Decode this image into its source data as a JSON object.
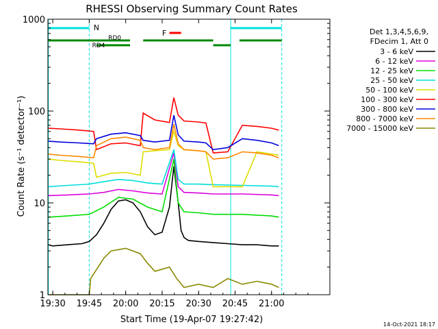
{
  "chart_data": {
    "type": "line",
    "title": "RHESSI Observing Summary Count Rates",
    "xlabel": "Start Time (19-Apr-07 19:27:42)",
    "ylabel": "Count Rate (s⁻¹ detector⁻¹)",
    "yscale": "log",
    "ylim": [
      1,
      1000
    ],
    "xlim_minutes": [
      19.4667,
      21.4
    ],
    "x_tick_labels": [
      "19:30",
      "19:45",
      "20:00",
      "20:15",
      "20:30",
      "20:45",
      "21:00"
    ],
    "x_tick_hours": [
      19.5,
      19.75,
      20.0,
      20.25,
      20.5,
      20.75,
      21.0
    ],
    "y_tick_labels": [
      "1",
      "10",
      "100",
      "1000"
    ],
    "y_tick_values": [
      1,
      10,
      100,
      1000
    ],
    "legend_header": [
      "Det 1,3,4,5,6,9,",
      "FDecim 1, Att 0"
    ],
    "legend_placement": "right",
    "footer_date": "14-Oct-2021 18:17",
    "annotations": {
      "night": "N",
      "flare": "F",
      "rd0": "RD0",
      "rd4": "RD4"
    },
    "series": [
      {
        "name": "3 - 6 keV",
        "color": "#000000",
        "x": [
          19.47,
          19.5,
          19.6,
          19.7,
          19.75,
          19.8,
          19.85,
          19.9,
          19.95,
          20.0,
          20.05,
          20.1,
          20.15,
          20.2,
          20.25,
          20.3,
          20.33,
          20.36,
          20.38,
          20.4,
          20.43,
          20.5,
          20.6,
          20.7,
          20.8,
          20.9,
          21.0,
          21.05
        ],
        "y": [
          3.5,
          3.4,
          3.5,
          3.6,
          3.8,
          4.5,
          6.0,
          8.5,
          10.5,
          10.8,
          10.0,
          8.0,
          5.5,
          4.5,
          4.8,
          9.0,
          25.0,
          10.0,
          5.0,
          4.2,
          3.9,
          3.8,
          3.7,
          3.6,
          3.5,
          3.5,
          3.4,
          3.4
        ]
      },
      {
        "name": "6 - 12 keV",
        "color": "#dd00dd",
        "x": [
          19.47,
          19.6,
          19.75,
          19.85,
          19.95,
          20.05,
          20.15,
          20.25,
          20.33,
          20.36,
          20.4,
          20.5,
          20.6,
          20.8,
          21.0,
          21.05
        ],
        "y": [
          12.0,
          12.2,
          12.5,
          13.0,
          14.0,
          13.5,
          12.8,
          12.5,
          35.0,
          15.0,
          13.0,
          12.8,
          12.5,
          12.5,
          12.2,
          12.0
        ]
      },
      {
        "name": "12 - 25 keV",
        "color": "#00dd00",
        "x": [
          19.47,
          19.6,
          19.75,
          19.85,
          19.95,
          20.05,
          20.15,
          20.25,
          20.33,
          20.36,
          20.4,
          20.5,
          20.6,
          20.8,
          21.0,
          21.05
        ],
        "y": [
          7.0,
          7.2,
          7.5,
          9.0,
          11.5,
          11.0,
          9.0,
          8.0,
          30.0,
          10.0,
          8.0,
          7.8,
          7.5,
          7.5,
          7.2,
          7.0
        ]
      },
      {
        "name": "25 - 50 keV",
        "color": "#00dddd",
        "x": [
          19.47,
          19.6,
          19.75,
          19.85,
          19.95,
          20.05,
          20.15,
          20.25,
          20.33,
          20.36,
          20.4,
          20.5,
          20.6,
          20.8,
          21.0,
          21.05
        ],
        "y": [
          15.0,
          15.5,
          16.0,
          17.0,
          18.0,
          17.5,
          16.5,
          16.0,
          38.0,
          18.0,
          16.0,
          16.0,
          15.8,
          15.5,
          15.2,
          15.0
        ]
      },
      {
        "name": "50 - 100 keV",
        "color": "#dddd00",
        "x": [
          19.47,
          19.55,
          19.68,
          19.78,
          19.8,
          19.9,
          20.0,
          20.1,
          20.12,
          20.2,
          20.3,
          20.33,
          20.36,
          20.4,
          20.5,
          20.55,
          20.6,
          20.7,
          20.8,
          20.9,
          21.0,
          21.05
        ],
        "y": [
          30.0,
          29.0,
          28.0,
          27.0,
          19.0,
          21.0,
          21.5,
          20.0,
          36.0,
          37.0,
          38.0,
          60.0,
          42.0,
          38.0,
          37.0,
          36.0,
          15.0,
          15.0,
          15.0,
          36.0,
          34.0,
          33.0
        ]
      },
      {
        "name": "100 - 300 keV",
        "color": "#ff0000",
        "x": [
          19.47,
          19.55,
          19.68,
          19.78,
          19.8,
          19.9,
          20.0,
          20.1,
          20.12,
          20.2,
          20.3,
          20.33,
          20.36,
          20.4,
          20.5,
          20.55,
          20.6,
          20.7,
          20.8,
          20.9,
          21.0,
          21.05
        ],
        "y": [
          65.0,
          64.0,
          62.0,
          60.0,
          38.0,
          44.0,
          45.0,
          42.0,
          95.0,
          80.0,
          75.0,
          140.0,
          90.0,
          78.0,
          76.0,
          74.0,
          35.0,
          36.0,
          70.0,
          68.0,
          65.0,
          62.0
        ]
      },
      {
        "name": "300 - 800 keV",
        "color": "#0000dd",
        "x": [
          19.47,
          19.55,
          19.68,
          19.78,
          19.8,
          19.9,
          20.0,
          20.1,
          20.12,
          20.2,
          20.3,
          20.33,
          20.36,
          20.4,
          20.5,
          20.55,
          20.6,
          20.7,
          20.8,
          20.9,
          21.0,
          21.05
        ],
        "y": [
          47.0,
          46.0,
          45.0,
          44.0,
          50.0,
          56.0,
          58.0,
          54.0,
          48.0,
          46.0,
          48.0,
          90.0,
          55.0,
          47.0,
          46.0,
          45.0,
          38.0,
          40.0,
          50.0,
          48.0,
          45.0,
          42.0
        ]
      },
      {
        "name": "800 - 7000 keV",
        "color": "#ff8800",
        "x": [
          19.47,
          19.55,
          19.68,
          19.78,
          19.8,
          19.9,
          20.0,
          20.1,
          20.12,
          20.2,
          20.3,
          20.33,
          20.36,
          20.4,
          20.5,
          20.55,
          20.6,
          20.7,
          20.8,
          20.9,
          21.0,
          21.05
        ],
        "y": [
          34.0,
          33.0,
          32.0,
          31.0,
          42.0,
          50.0,
          52.0,
          48.0,
          40.0,
          38.0,
          40.0,
          72.0,
          44.0,
          38.0,
          37.0,
          36.0,
          30.0,
          31.0,
          36.0,
          35.0,
          33.0,
          31.0
        ]
      },
      {
        "name": "7000 - 15000 keV",
        "color": "#888800",
        "x": [
          19.47,
          19.75,
          19.76,
          19.85,
          19.9,
          20.0,
          20.1,
          20.15,
          20.2,
          20.3,
          20.35,
          20.4,
          20.5,
          20.6,
          20.7,
          20.8,
          20.9,
          21.0,
          21.05
        ],
        "y": [
          1.0,
          1.0,
          1.5,
          2.5,
          3.0,
          3.2,
          2.8,
          2.2,
          1.8,
          2.0,
          1.5,
          1.2,
          1.3,
          1.2,
          1.5,
          1.3,
          1.4,
          1.3,
          1.2
        ]
      }
    ]
  }
}
